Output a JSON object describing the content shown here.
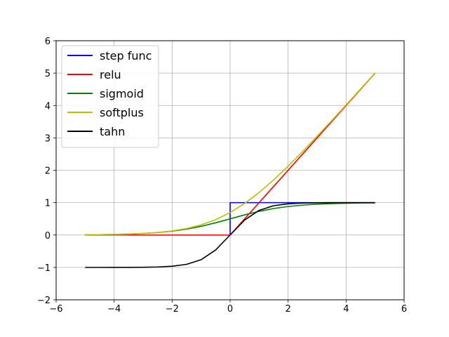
{
  "chart_data": {
    "type": "line",
    "xlim": [
      -6,
      6
    ],
    "ylim": [
      -2,
      6
    ],
    "x_ticks": [
      -6,
      -4,
      -2,
      0,
      2,
      4,
      6
    ],
    "y_ticks": [
      -2,
      -1,
      0,
      1,
      2,
      3,
      4,
      5,
      6
    ],
    "x_tick_labels": [
      "−6",
      "−4",
      "−2",
      "0",
      "2",
      "4",
      "6"
    ],
    "y_tick_labels": [
      "−2",
      "−1",
      "0",
      "1",
      "2",
      "3",
      "4",
      "5",
      "6"
    ],
    "grid": true,
    "legend_position": "top-left",
    "x": [
      -5,
      -4.5,
      -4,
      -3.5,
      -3,
      -2.5,
      -2,
      -1.5,
      -1,
      -0.5,
      0,
      0.5,
      1,
      1.5,
      2,
      2.5,
      3,
      3.5,
      4,
      4.5,
      5
    ],
    "series": [
      {
        "name": "step func",
        "color": "#0000ff",
        "x": [
          -5,
          0,
          0,
          5
        ],
        "values": [
          0,
          0,
          1,
          1
        ]
      },
      {
        "name": "relu",
        "color": "#ff0000",
        "values": [
          0,
          0,
          0,
          0,
          0,
          0,
          0,
          0,
          0,
          0,
          0,
          0.5,
          1,
          1.5,
          2,
          2.5,
          3,
          3.5,
          4,
          4.5,
          5
        ]
      },
      {
        "name": "sigmoid",
        "color": "#008000",
        "values": [
          0.0067,
          0.011,
          0.018,
          0.029,
          0.047,
          0.076,
          0.119,
          0.182,
          0.269,
          0.378,
          0.5,
          0.622,
          0.731,
          0.818,
          0.881,
          0.924,
          0.953,
          0.971,
          0.982,
          0.989,
          0.993
        ]
      },
      {
        "name": "softplus",
        "color": "#bfbf00",
        "values": [
          0.0067,
          0.011,
          0.018,
          0.03,
          0.049,
          0.079,
          0.127,
          0.201,
          0.313,
          0.474,
          0.693,
          0.974,
          1.313,
          1.701,
          2.127,
          2.579,
          3.049,
          3.53,
          4.018,
          4.511,
          5.007
        ]
      },
      {
        "name": "tahn",
        "color": "#000000",
        "values": [
          -0.9999,
          -0.9998,
          -0.9993,
          -0.9982,
          -0.9951,
          -0.9866,
          -0.964,
          -0.905,
          -0.762,
          -0.462,
          0,
          0.462,
          0.762,
          0.905,
          0.964,
          0.9866,
          0.9951,
          0.9982,
          0.9993,
          0.9998,
          0.9999
        ]
      }
    ]
  }
}
